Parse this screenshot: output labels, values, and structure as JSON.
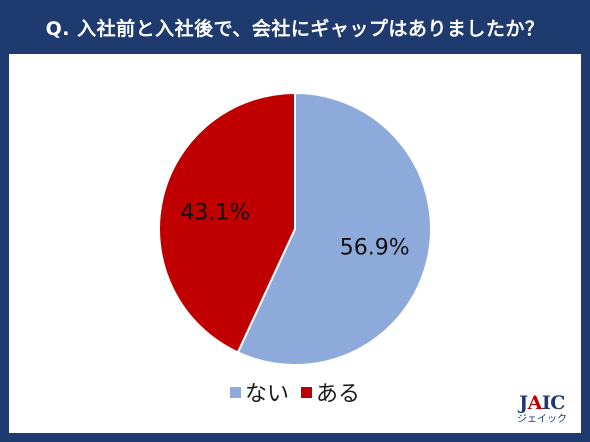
{
  "title": "Q. 入社前と入社後で、会社にギャップはありましたか？",
  "chart_data": {
    "type": "pie",
    "title": "Q. 入社前と入社後で、会社にギャップはありましたか？",
    "slices": [
      {
        "name": "ない",
        "value": 56.9,
        "label": "56.9%",
        "color": "#8eaadb"
      },
      {
        "name": "ある",
        "value": 43.1,
        "label": "43.1%",
        "color": "#c00000"
      }
    ],
    "legend_position": "bottom"
  },
  "legend": [
    {
      "label": "ない",
      "color": "#8eaadb"
    },
    {
      "label": "ある",
      "color": "#c00000"
    }
  ],
  "logo": {
    "main_j": "J",
    "main_a": "A",
    "main_rest": "IC",
    "sub": "ジェイック"
  },
  "colors": {
    "background": "#1f3a6e",
    "panel": "#ffffff",
    "brand_red": "#c00000"
  }
}
